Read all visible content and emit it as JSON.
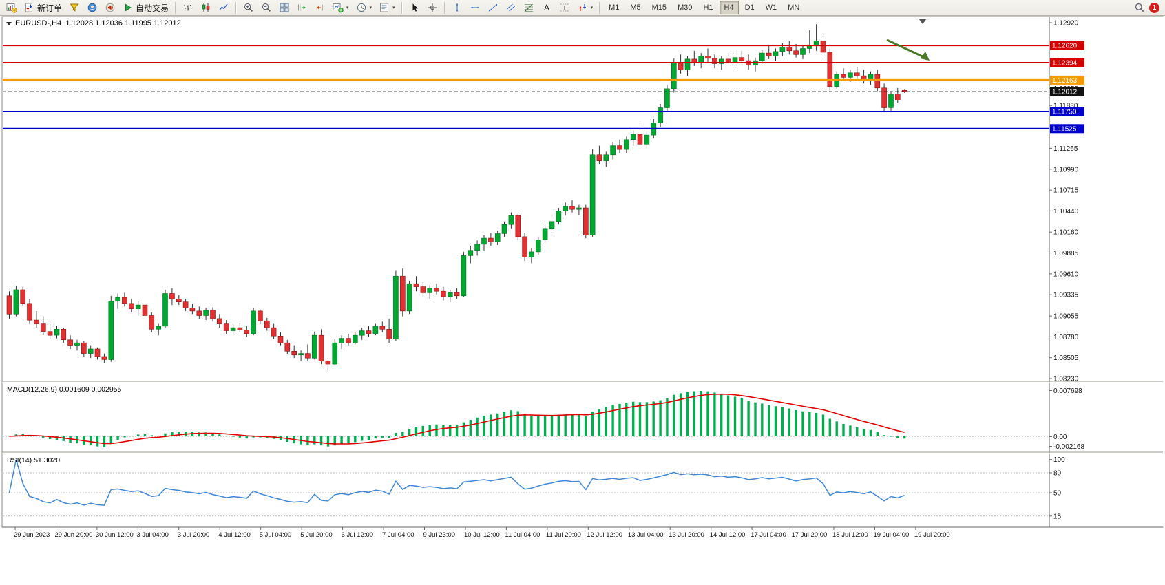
{
  "toolbar": {
    "badge": "1",
    "items": [
      {
        "name": "new-chart-button",
        "icon": "chart-new"
      },
      {
        "name": "new-order-button",
        "icon": "order",
        "label": "新订单"
      },
      {
        "name": "metaeditor-button",
        "icon": "funnel"
      },
      {
        "name": "community-button",
        "icon": "headset"
      },
      {
        "name": "alerts-button",
        "icon": "speaker"
      },
      {
        "name": "autotrading-button",
        "icon": "autotrade",
        "label": "自动交易"
      },
      {
        "sep": true
      },
      {
        "name": "bar-chart-button",
        "icon": "bars-chart"
      },
      {
        "name": "candlestick-chart-button",
        "icon": "candles-chart"
      },
      {
        "name": "line-chart-button",
        "icon": "line-chart"
      },
      {
        "sep": true
      },
      {
        "name": "zoom-in-button",
        "icon": "zoom-in"
      },
      {
        "name": "zoom-out-button",
        "icon": "zoom-out"
      },
      {
        "name": "tile-windows-button",
        "icon": "tile"
      },
      {
        "name": "auto-scroll-button",
        "icon": "autoscroll"
      },
      {
        "name": "chart-shift-button",
        "icon": "shift"
      },
      {
        "name": "indicators-button",
        "icon": "indicators",
        "dropdown": true
      },
      {
        "name": "periods-button",
        "icon": "clock",
        "dropdown": true
      },
      {
        "name": "templates-button",
        "icon": "template",
        "dropdown": true
      },
      {
        "sep": true
      },
      {
        "name": "cursor-button",
        "icon": "cursor"
      },
      {
        "name": "crosshair-button",
        "icon": "crosshair"
      },
      {
        "sep": true
      },
      {
        "name": "vertical-line-button",
        "icon": "vline"
      },
      {
        "name": "horizontal-line-button",
        "icon": "hline"
      },
      {
        "name": "trendline-button",
        "icon": "tline"
      },
      {
        "name": "channel-button",
        "icon": "channel"
      },
      {
        "name": "fibonacci-button",
        "icon": "fibo"
      },
      {
        "name": "text-button",
        "icon": "textA"
      },
      {
        "name": "text-label-button",
        "icon": "textLabel"
      },
      {
        "name": "arrows-button",
        "icon": "arrows",
        "dropdown": true
      },
      {
        "sep": true
      }
    ],
    "timeframes": [
      {
        "label": "M1"
      },
      {
        "label": "M5"
      },
      {
        "label": "M15"
      },
      {
        "label": "M30"
      },
      {
        "label": "H1"
      },
      {
        "label": "H4",
        "active": true
      },
      {
        "label": "D1"
      },
      {
        "label": "W1"
      },
      {
        "label": "MN"
      }
    ]
  },
  "chart": {
    "title_text": "EURUSD-,H4  1.12028 1.12036 1.11995 1.12012"
  },
  "macd": {
    "label": "MACD(12,26,9) 0.001609 0.002955",
    "axis_labels": [
      "0.007698",
      "0.00",
      "-0.002168"
    ],
    "histogram_color": "#00B050",
    "signal_color": "#e00000"
  },
  "rsi": {
    "label": "RSI(14) 51.3020",
    "axis_labels": [
      "100",
      "80",
      "50",
      "15"
    ],
    "levels": [
      80,
      50,
      15
    ],
    "line_color": "#3E86D6"
  },
  "chart_data": {
    "type": "candlestick",
    "symbol": "EURUSD-",
    "timeframe": "H4",
    "last_ohlc": {
      "open": "1.12028",
      "high": "1.12036",
      "low": "1.11995",
      "close": "1.12012"
    },
    "y_range": [
      1.0823,
      1.1292
    ],
    "bull_color": "#00A832",
    "bear_color": "#E03232",
    "price_axis_labels": [
      "1.12920",
      "1.12055",
      "1.11830",
      "1.11265",
      "1.10990",
      "1.10715",
      "1.10440",
      "1.10160",
      "1.09885",
      "1.09610",
      "1.09335",
      "1.09055",
      "1.08780",
      "1.08505",
      "1.08230"
    ],
    "horizontal_lines": [
      {
        "price": 1.1262,
        "label": "1.12620",
        "color": "#d40000",
        "width": 2
      },
      {
        "price": 1.12394,
        "label": "1.12394",
        "color": "#d40000",
        "width": 2
      },
      {
        "price": 1.12163,
        "label": "1.12163",
        "color": "#f59b00",
        "width": 3
      },
      {
        "price": 1.1175,
        "label": "1.11750",
        "color": "#0000cc",
        "width": 2
      },
      {
        "price": 1.11525,
        "label": "1.11525",
        "color": "#0000cc",
        "width": 2
      }
    ],
    "current_price": {
      "price": 1.12012,
      "label": "1.12012"
    },
    "annotation_arrow": {
      "from": [
        1288,
        58
      ],
      "to": [
        1350,
        88
      ],
      "color": "#4a7a28"
    },
    "time_labels": [
      "29 Jun 2023",
      "29 Jun 20:00",
      "30 Jun 12:00",
      "3 Jul 04:00",
      "3 Jul 20:00",
      "4 Jul 12:00",
      "5 Jul 04:00",
      "5 Jul 20:00",
      "6 Jul 12:00",
      "7 Jul 04:00",
      "9 Jul 23:00",
      "10 Jul 12:00",
      "11 Jul 04:00",
      "11 Jul 20:00",
      "12 Jul 12:00",
      "13 Jul 04:00",
      "13 Jul 20:00",
      "14 Jul 12:00",
      "17 Jul 04:00",
      "17 Jul 20:00",
      "18 Jul 12:00",
      "19 Jul 04:00",
      "19 Jul 20:00"
    ],
    "candles": [
      [
        1.0932,
        1.0938,
        1.0902,
        1.0908
      ],
      [
        1.0908,
        1.0945,
        1.0905,
        1.094
      ],
      [
        1.094,
        1.0944,
        1.0918,
        1.0922
      ],
      [
        1.0922,
        1.0928,
        1.0895,
        1.09
      ],
      [
        1.09,
        1.0912,
        1.089,
        1.0895
      ],
      [
        1.0895,
        1.0905,
        1.088,
        1.0885
      ],
      [
        1.0885,
        1.0895,
        1.0875,
        1.088
      ],
      [
        1.088,
        1.0892,
        1.0876,
        1.0888
      ],
      [
        1.0888,
        1.089,
        1.087,
        1.0874
      ],
      [
        1.0874,
        1.088,
        1.0862,
        1.0866
      ],
      [
        1.0866,
        1.0874,
        1.086,
        1.087
      ],
      [
        1.087,
        1.0872,
        1.0852,
        1.0856
      ],
      [
        1.0856,
        1.0866,
        1.085,
        1.0862
      ],
      [
        1.0862,
        1.0864,
        1.0848,
        1.0852
      ],
      [
        1.0852,
        1.0856,
        1.0844,
        1.0848
      ],
      [
        1.0848,
        1.0932,
        1.0845,
        1.0925
      ],
      [
        1.0925,
        1.0935,
        1.0915,
        1.093
      ],
      [
        1.093,
        1.0936,
        1.0918,
        1.0922
      ],
      [
        1.0922,
        1.0928,
        1.091,
        1.0915
      ],
      [
        1.0915,
        1.0925,
        1.0908,
        1.092
      ],
      [
        1.092,
        1.0922,
        1.0902,
        1.0906
      ],
      [
        1.0906,
        1.091,
        1.0884,
        1.0888
      ],
      [
        1.0888,
        1.0895,
        1.088,
        1.0892
      ],
      [
        1.0892,
        1.094,
        1.089,
        1.0935
      ],
      [
        1.0935,
        1.0942,
        1.092,
        1.0928
      ],
      [
        1.0928,
        1.0933,
        1.092,
        1.0924
      ],
      [
        1.0924,
        1.0928,
        1.0912,
        1.0916
      ],
      [
        1.0916,
        1.0922,
        1.0908,
        1.0912
      ],
      [
        1.0912,
        1.0918,
        1.0902,
        1.0906
      ],
      [
        1.0906,
        1.0916,
        1.09,
        1.0913
      ],
      [
        1.0913,
        1.0917,
        1.0898,
        1.0902
      ],
      [
        1.0902,
        1.0908,
        1.089,
        1.0895
      ],
      [
        1.0895,
        1.09,
        1.0882,
        1.0886
      ],
      [
        1.0886,
        1.0894,
        1.088,
        1.089
      ],
      [
        1.089,
        1.0896,
        1.0884,
        1.0887
      ],
      [
        1.0887,
        1.0892,
        1.0878,
        1.0882
      ],
      [
        1.0882,
        1.0916,
        1.088,
        1.0912
      ],
      [
        1.0912,
        1.0914,
        1.0895,
        1.0899
      ],
      [
        1.0899,
        1.0903,
        1.0886,
        1.089
      ],
      [
        1.089,
        1.0895,
        1.0875,
        1.0879
      ],
      [
        1.0879,
        1.0884,
        1.0866,
        1.087
      ],
      [
        1.087,
        1.0874,
        1.0855,
        1.0859
      ],
      [
        1.0859,
        1.0866,
        1.085,
        1.0854
      ],
      [
        1.0854,
        1.086,
        1.0846,
        1.0856
      ],
      [
        1.0856,
        1.0868,
        1.0846,
        1.085
      ],
      [
        1.085,
        1.0885,
        1.0848,
        1.088
      ],
      [
        1.088,
        1.0888,
        1.0842,
        1.0846
      ],
      [
        1.0846,
        1.085,
        1.0835,
        1.0842
      ],
      [
        1.0842,
        1.0875,
        1.084,
        1.087
      ],
      [
        1.087,
        1.088,
        1.0862,
        1.0876
      ],
      [
        1.0876,
        1.0882,
        1.0866,
        1.087
      ],
      [
        1.087,
        1.0884,
        1.0868,
        1.088
      ],
      [
        1.088,
        1.089,
        1.0874,
        1.0886
      ],
      [
        1.0886,
        1.0892,
        1.0878,
        1.0882
      ],
      [
        1.0882,
        1.0895,
        1.088,
        1.0892
      ],
      [
        1.0892,
        1.0898,
        1.0884,
        1.0888
      ],
      [
        1.0888,
        1.0902,
        1.087,
        1.0875
      ],
      [
        1.0875,
        1.0965,
        1.0872,
        1.0958
      ],
      [
        1.0958,
        1.0968,
        1.0905,
        1.0912
      ],
      [
        1.0912,
        1.0952,
        1.0908,
        1.0948
      ],
      [
        1.0948,
        1.0958,
        1.0938,
        1.0944
      ],
      [
        1.0944,
        1.095,
        1.093,
        1.0936
      ],
      [
        1.0936,
        1.0946,
        1.0928,
        1.0942
      ],
      [
        1.0942,
        1.0948,
        1.0934,
        1.0938
      ],
      [
        1.0938,
        1.0944,
        1.0926,
        1.0931
      ],
      [
        1.0931,
        1.094,
        1.0924,
        1.0936
      ],
      [
        1.0936,
        1.0942,
        1.0928,
        1.0932
      ],
      [
        1.0932,
        1.099,
        1.093,
        1.0985
      ],
      [
        1.0985,
        1.0998,
        1.0975,
        1.0992
      ],
      [
        1.0992,
        1.1005,
        1.0985,
        1.1
      ],
      [
        1.1,
        1.1012,
        1.0992,
        1.1008
      ],
      [
        1.1008,
        1.1015,
        1.0998,
        1.1003
      ],
      [
        1.1003,
        1.1018,
        1.0999,
        1.1014
      ],
      [
        1.1014,
        1.103,
        1.101,
        1.1026
      ],
      [
        1.1026,
        1.1042,
        1.102,
        1.1038
      ],
      [
        1.1038,
        1.104,
        1.1005,
        1.101
      ],
      [
        1.101,
        1.1015,
        1.0978,
        1.0983
      ],
      [
        1.0983,
        1.0995,
        1.0975,
        1.099
      ],
      [
        1.099,
        1.101,
        1.0986,
        1.1006
      ],
      [
        1.1006,
        1.1025,
        1.1002,
        1.102
      ],
      [
        1.102,
        1.1035,
        1.1015,
        1.103
      ],
      [
        1.103,
        1.1048,
        1.1026,
        1.1044
      ],
      [
        1.1044,
        1.1055,
        1.1038,
        1.105
      ],
      [
        1.105,
        1.1058,
        1.1042,
        1.1046
      ],
      [
        1.1046,
        1.1052,
        1.1038,
        1.1048
      ],
      [
        1.1048,
        1.1052,
        1.1008,
        1.1012
      ],
      [
        1.1012,
        1.1125,
        1.101,
        1.1118
      ],
      [
        1.1118,
        1.113,
        1.1105,
        1.111
      ],
      [
        1.111,
        1.1122,
        1.1102,
        1.1118
      ],
      [
        1.1118,
        1.1135,
        1.1112,
        1.113
      ],
      [
        1.113,
        1.1138,
        1.112,
        1.1125
      ],
      [
        1.1125,
        1.1142,
        1.112,
        1.1138
      ],
      [
        1.1138,
        1.115,
        1.113,
        1.1145
      ],
      [
        1.1145,
        1.116,
        1.1128,
        1.1132
      ],
      [
        1.1132,
        1.1148,
        1.1126,
        1.1144
      ],
      [
        1.1144,
        1.1165,
        1.114,
        1.116
      ],
      [
        1.116,
        1.1185,
        1.1155,
        1.118
      ],
      [
        1.118,
        1.121,
        1.1175,
        1.1205
      ],
      [
        1.1205,
        1.1245,
        1.12,
        1.124
      ],
      [
        1.124,
        1.125,
        1.1225,
        1.123
      ],
      [
        1.123,
        1.1248,
        1.1222,
        1.1244
      ],
      [
        1.1244,
        1.1255,
        1.1235,
        1.124
      ],
      [
        1.124,
        1.1252,
        1.1232,
        1.1248
      ],
      [
        1.1248,
        1.1258,
        1.124,
        1.1245
      ],
      [
        1.1245,
        1.125,
        1.1232,
        1.1238
      ],
      [
        1.1238,
        1.1248,
        1.123,
        1.1244
      ],
      [
        1.1244,
        1.1252,
        1.1236,
        1.124
      ],
      [
        1.124,
        1.125,
        1.1234,
        1.1246
      ],
      [
        1.1246,
        1.1255,
        1.1238,
        1.1242
      ],
      [
        1.1242,
        1.125,
        1.123,
        1.1236
      ],
      [
        1.1236,
        1.1246,
        1.1228,
        1.1242
      ],
      [
        1.1242,
        1.1256,
        1.1238,
        1.1252
      ],
      [
        1.1252,
        1.1262,
        1.1244,
        1.1248
      ],
      [
        1.1248,
        1.1258,
        1.1242,
        1.1254
      ],
      [
        1.1254,
        1.1265,
        1.1248,
        1.126
      ],
      [
        1.126,
        1.1268,
        1.125,
        1.1255
      ],
      [
        1.1255,
        1.1264,
        1.1246,
        1.125
      ],
      [
        1.125,
        1.1262,
        1.1244,
        1.1258
      ],
      [
        1.1258,
        1.1282,
        1.1252,
        1.1262
      ],
      [
        1.1262,
        1.129,
        1.1255,
        1.1268
      ],
      [
        1.1268,
        1.1272,
        1.1248,
        1.1253
      ],
      [
        1.1253,
        1.1258,
        1.12,
        1.1208
      ],
      [
        1.1208,
        1.1228,
        1.1204,
        1.1224
      ],
      [
        1.1224,
        1.1232,
        1.1216,
        1.122
      ],
      [
        1.122,
        1.123,
        1.1214,
        1.1226
      ],
      [
        1.1226,
        1.1234,
        1.1218,
        1.1222
      ],
      [
        1.1222,
        1.123,
        1.1212,
        1.1217
      ],
      [
        1.1217,
        1.1228,
        1.121,
        1.1224
      ],
      [
        1.1224,
        1.123,
        1.1202,
        1.1206
      ],
      [
        1.1206,
        1.1212,
        1.1174,
        1.118
      ],
      [
        1.118,
        1.1202,
        1.1176,
        1.1198
      ],
      [
        1.1198,
        1.1206,
        1.1186,
        1.119
      ],
      [
        1.12028,
        1.12036,
        1.11995,
        1.12012
      ]
    ]
  }
}
